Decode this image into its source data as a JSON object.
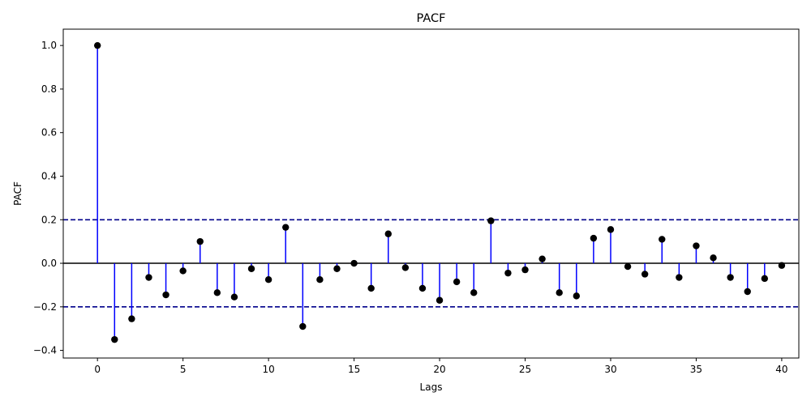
{
  "chart_data": {
    "type": "stem",
    "title": "PACF",
    "xlabel": "Lags",
    "ylabel": "PACF",
    "xlim": [
      -2,
      41
    ],
    "ylim": [
      -0.435,
      1.075
    ],
    "x_ticks": [
      0,
      5,
      10,
      15,
      20,
      25,
      30,
      35,
      40
    ],
    "x_tick_labels": [
      "0",
      "5",
      "10",
      "15",
      "20",
      "25",
      "30",
      "35",
      "40"
    ],
    "y_ticks": [
      -0.4,
      -0.2,
      0.0,
      0.2,
      0.4,
      0.6,
      0.8,
      1.0
    ],
    "y_tick_labels": [
      "−0.4",
      "−0.2",
      "0.0",
      "0.2",
      "0.4",
      "0.6",
      "0.8",
      "1.0"
    ],
    "confidence_bounds": [
      0.2,
      -0.2
    ],
    "grid": false,
    "colors": {
      "stem": "#0000ff",
      "marker": "#000000",
      "zero_line": "#000000",
      "confidence_line": "#00008b"
    },
    "series": [
      {
        "x": [
          0,
          1,
          2,
          3,
          4,
          5,
          6,
          7,
          8,
          9,
          10,
          11,
          12,
          13,
          14,
          15,
          16,
          17,
          18,
          19,
          20,
          21,
          22,
          23,
          24,
          25,
          26,
          27,
          28,
          29,
          30,
          31,
          32,
          33,
          34,
          35,
          36,
          37,
          38,
          39,
          40
        ],
        "values": [
          1.0,
          -0.35,
          -0.255,
          -0.065,
          -0.145,
          -0.035,
          0.1,
          -0.135,
          -0.155,
          -0.025,
          -0.075,
          0.165,
          -0.29,
          -0.075,
          -0.025,
          0.0,
          -0.115,
          0.135,
          -0.02,
          -0.115,
          -0.17,
          -0.085,
          -0.135,
          0.195,
          -0.045,
          -0.03,
          0.02,
          -0.135,
          -0.15,
          0.115,
          0.155,
          -0.015,
          -0.05,
          0.11,
          -0.065,
          0.08,
          0.025,
          -0.065,
          -0.13,
          -0.07,
          -0.01
        ]
      }
    ]
  }
}
